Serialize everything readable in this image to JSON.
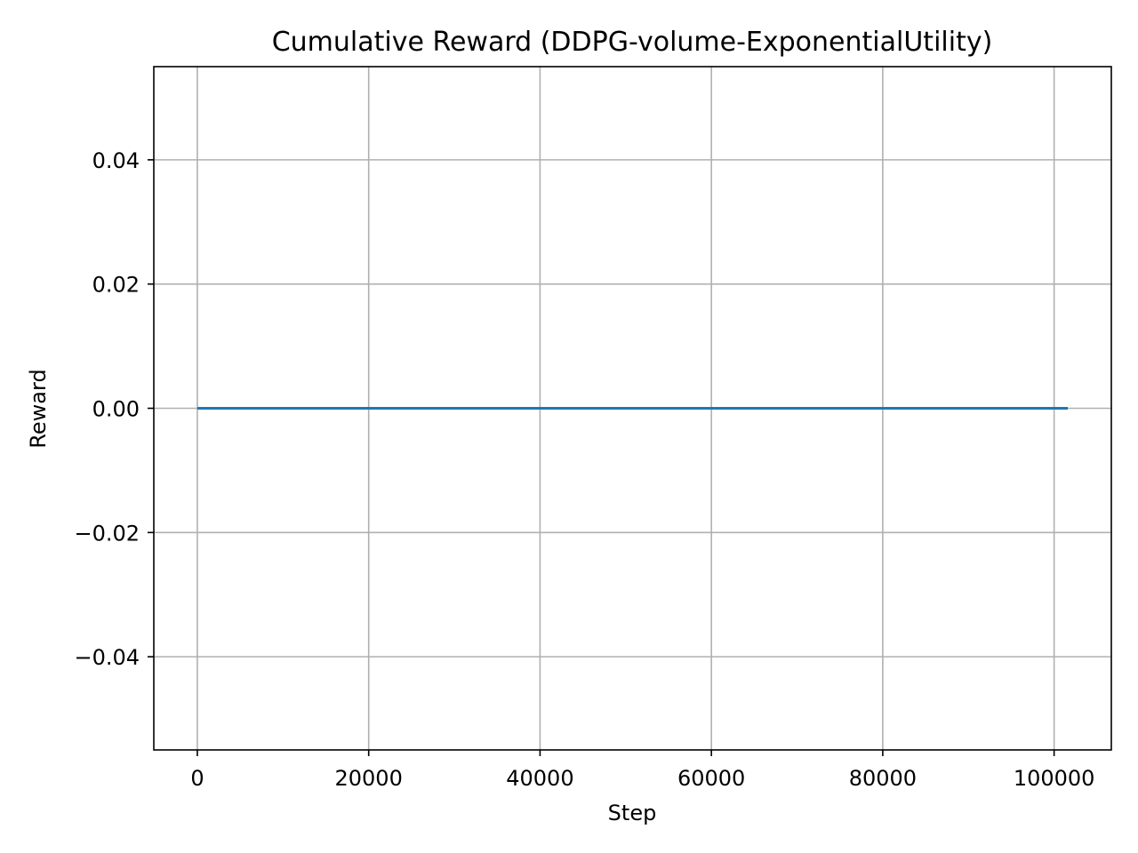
{
  "chart_data": {
    "type": "line",
    "title": "Cumulative Reward (DDPG-volume-ExponentialUtility)",
    "xlabel": "Step",
    "ylabel": "Reward",
    "xlim": [
      -5080,
      106680
    ],
    "ylim": [
      -0.055,
      0.055
    ],
    "x_ticks": [
      0,
      20000,
      40000,
      60000,
      80000,
      100000
    ],
    "x_tick_labels": [
      "0",
      "20000",
      "40000",
      "60000",
      "80000",
      "100000"
    ],
    "y_ticks": [
      -0.04,
      -0.02,
      0.0,
      0.02,
      0.04
    ],
    "y_tick_labels": [
      "−0.04",
      "−0.02",
      "0.00",
      "0.02",
      "0.04"
    ],
    "grid": true,
    "series": [
      {
        "color": "#1f77b4",
        "x": [
          0,
          101600
        ],
        "y": [
          0.0,
          0.0
        ]
      }
    ]
  }
}
